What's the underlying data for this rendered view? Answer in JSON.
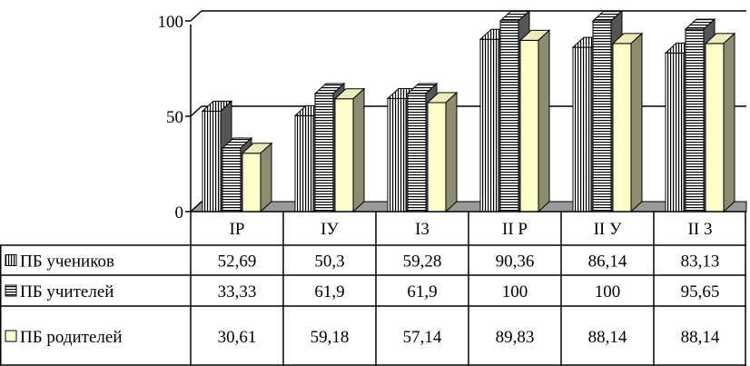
{
  "chart_data": {
    "type": "bar",
    "title": "",
    "xlabel": "",
    "ylabel": "",
    "ylim": [
      0,
      100
    ],
    "yticks": [
      "0",
      "50",
      "100"
    ],
    "grid": true,
    "legend": "data-table-left",
    "three_d": true,
    "categories": [
      "IP",
      "IУ",
      "I3",
      "II P",
      "II У",
      "II 3"
    ],
    "series": [
      {
        "name": "ПБ учеников",
        "pattern": "vertical-stripes",
        "color": "#ffffff",
        "values": [
          52.69,
          50.3,
          59.28,
          90.36,
          86.14,
          83.13
        ],
        "labels": [
          "52,69",
          "50,3",
          "59,28",
          "90,36",
          "86,14",
          "83,13"
        ]
      },
      {
        "name": "ПБ учителей",
        "pattern": "horizontal-stripes",
        "color": "#ffffff",
        "values": [
          33.33,
          61.9,
          61.9,
          100,
          100,
          95.65
        ],
        "labels": [
          "33,33",
          "61,9",
          "61,9",
          "100",
          "100",
          "95,65"
        ]
      },
      {
        "name": "ПБ родителей",
        "pattern": "solid",
        "color": "#ffffcc",
        "values": [
          30.61,
          59.18,
          57.14,
          89.83,
          88.14,
          88.14
        ],
        "labels": [
          "30,61",
          "59,18",
          "57,14",
          "89,83",
          "88,14",
          "88,14"
        ]
      }
    ]
  }
}
